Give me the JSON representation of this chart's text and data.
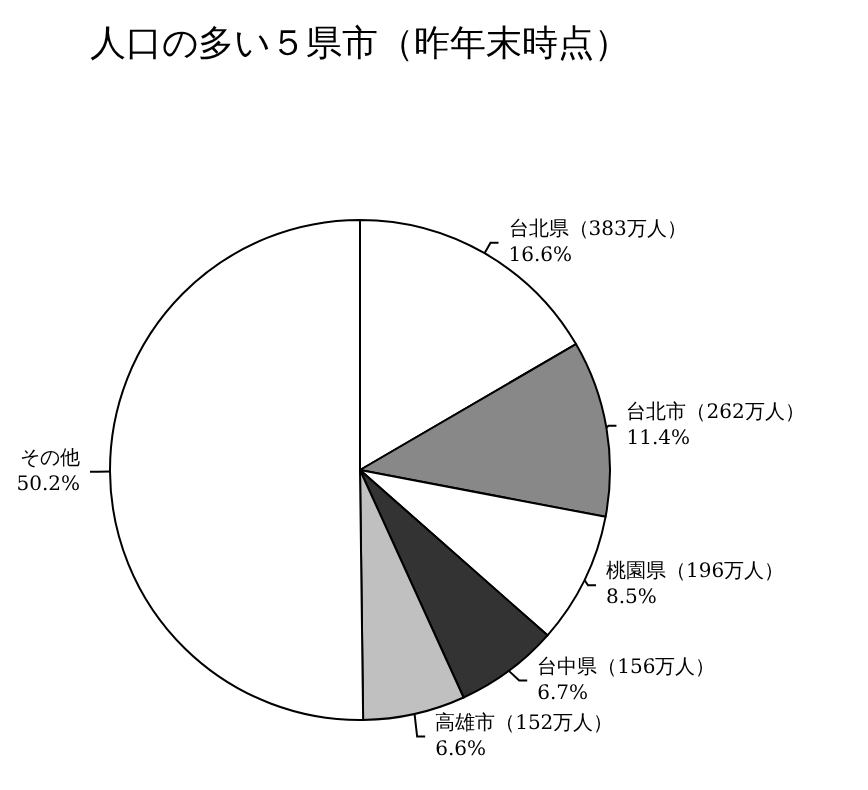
{
  "chart_data": {
    "type": "pie",
    "title": "人口の多い５県市（昨年末時点）",
    "categories": [
      "台北県（383万人）",
      "台北市（262万人）",
      "桃園県（196万人）",
      "台中県（156万人）",
      "高雄市（152万人）",
      "その他"
    ],
    "values": [
      16.6,
      11.4,
      8.5,
      6.7,
      6.6,
      50.2
    ],
    "value_labels": [
      "16.6%",
      "11.4%",
      "8.5%",
      "6.7%",
      "6.6%",
      "50.2%"
    ],
    "colors": [
      "#ffffff",
      "#888888",
      "#ffffff",
      "#333333",
      "#c0c0c0",
      "#ffffff"
    ],
    "legend": false
  }
}
